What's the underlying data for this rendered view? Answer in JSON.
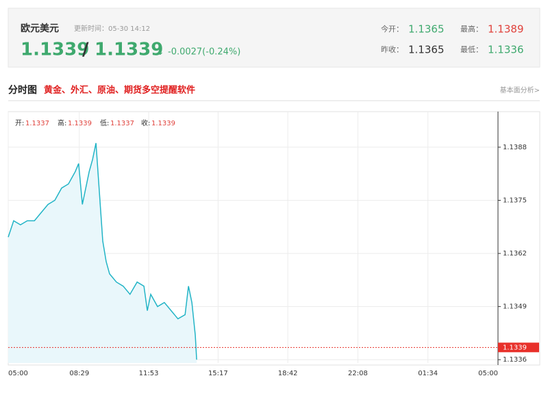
{
  "header": {
    "title": "欧元美元",
    "update_time": "更新时间：05-30 14:12",
    "bid": "1.1339",
    "ask": "1.1339",
    "change": "-0.0027(-0.24%)",
    "stats": [
      {
        "label": "今开：",
        "value": "1.1365"
      },
      {
        "label": "最高：",
        "value": "1.1389"
      },
      {
        "label": "昨收：",
        "value": "1.1365"
      },
      {
        "label": "最低：",
        "value": "1.1336"
      }
    ]
  },
  "section": {
    "title": "分时图",
    "promo": "黄金、外汇、原油、期货多空提醒软件",
    "link": "基本面分析>"
  },
  "ohlc": [
    {
      "label": "开:",
      "value": "1.1337"
    },
    {
      "label": "高:",
      "value": "1.1339"
    },
    {
      "label": "低:",
      "value": "1.1337"
    },
    {
      "label": "收:",
      "value": "1.1339"
    }
  ],
  "chart_data": {
    "type": "area",
    "x": [
      0,
      16,
      36,
      56,
      77,
      97,
      117,
      137,
      157,
      177,
      197,
      207,
      218,
      238,
      248,
      258,
      268,
      278,
      288,
      298,
      318,
      338,
      358,
      379,
      399,
      409,
      419,
      439,
      459,
      479,
      499,
      520,
      530,
      540,
      550,
      554
    ],
    "values": [
      1.1366,
      1.137,
      1.1369,
      1.137,
      1.137,
      1.1372,
      1.1374,
      1.1375,
      1.1378,
      1.1379,
      1.1382,
      1.1384,
      1.1374,
      1.1382,
      1.1385,
      1.1389,
      1.1377,
      1.1365,
      1.136,
      1.1357,
      1.1355,
      1.1354,
      1.1352,
      1.1355,
      1.1354,
      1.1348,
      1.1352,
      1.1349,
      1.135,
      1.1348,
      1.1346,
      1.1347,
      1.1354,
      1.135,
      1.1342,
      1.1336
    ],
    "color": "#22b4c6",
    "fill": "#e9f7fb",
    "xlim": [
      0,
      1440
    ],
    "xticks": [
      {
        "value": 0,
        "label": "05:00"
      },
      {
        "value": 209,
        "label": "08:29"
      },
      {
        "value": 413,
        "label": "11:53"
      },
      {
        "value": 617,
        "label": "15:17"
      },
      {
        "value": 822,
        "label": "18:42"
      },
      {
        "value": 1028,
        "label": "22:08"
      },
      {
        "value": 1234,
        "label": "01:34"
      },
      {
        "value": 1440,
        "label": "05:00"
      }
    ],
    "ylim": [
      1.13352,
      1.13967
    ],
    "yticks": [
      1.1336,
      1.1349,
      1.1362,
      1.1375,
      1.1388
    ],
    "price_line": 1.1339,
    "price_line_color": "#e8302a",
    "grid": true
  }
}
